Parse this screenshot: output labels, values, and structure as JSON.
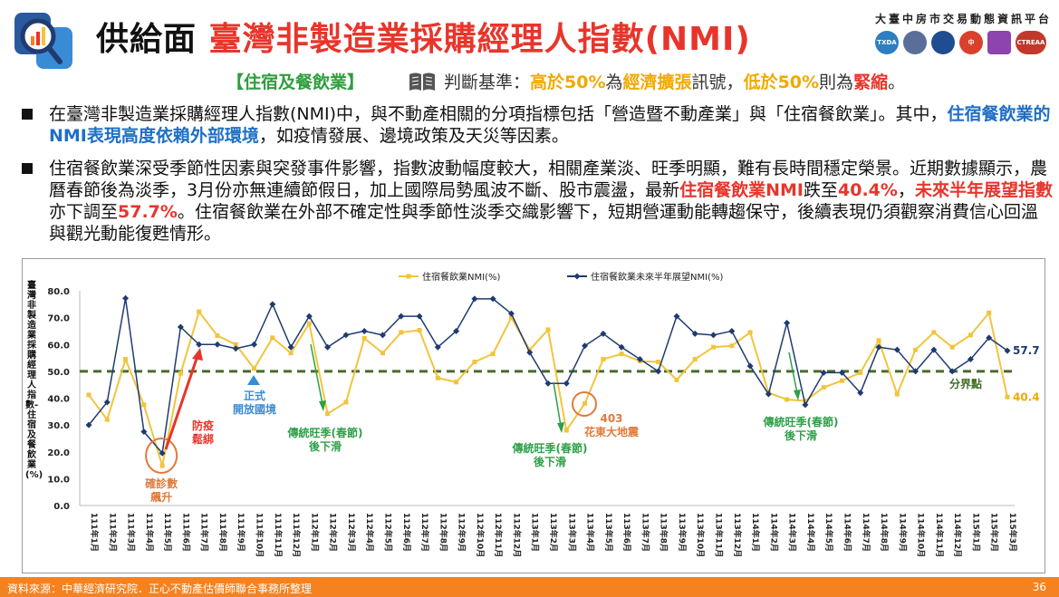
{
  "header": {
    "title_black": "供給面",
    "title_red": "臺灣非製造業採購經理人指數(NMI)",
    "org_name": "大臺中房市交易動態資訊平台",
    "partner_logos": [
      "TXDA",
      "logo",
      "logo",
      "中",
      "logo",
      "CTREAA"
    ]
  },
  "subtitle": {
    "sector": "【住宿及餐飲業】",
    "criteria_prefix": "判斷基準：",
    "high": "高於50%",
    "mid1": "為",
    "expansion": "經濟擴張",
    "mid2": "訊號，",
    "low": "低於50%",
    "mid3": "則為",
    "contraction": "緊縮",
    "end": "。"
  },
  "bullets": {
    "b1": {
      "p1": "在臺灣非製造業採購經理人指數(NMI)中，與不動產相關的分項指標包括「營造暨不動產業」與「住宿餐飲業」。其中，",
      "hl": "住宿餐飲業的NMI表現高度依賴外部環境",
      "p2": "，如疫情發展、邊境政策及天災等因素。"
    },
    "b2": {
      "p1": "住宿餐飲業深受季節性因素與突發事件影響，指數波動幅度較大，相關產業淡、旺季明顯，難有長時間穩定榮景。近期數據顯示，農曆春節後為淡季，3月份亦無連續節假日，加上國際局勢風波不斷、股市震盪，最新",
      "hl1": "住宿餐飲業NMI",
      "p2": "跌至",
      "hl2": "40.4%",
      "p3": "，",
      "hl3": "未來半年展望指數",
      "p4": "亦下調至",
      "hl4": "57.7%",
      "p5": "。住宿餐飲業在外部不確定性與季節性淡季交織影響下，短期營運動能轉趨保守，後續表現仍須觀察消費信心回溫與觀光動能復甦情形。"
    }
  },
  "chart_data": {
    "type": "line",
    "ylabel": "臺灣非製造業採購經理人指數-住宿及餐飲業(%)",
    "ylim": [
      0,
      80
    ],
    "yticks": [
      "0.0",
      "10.0",
      "20.0",
      "30.0",
      "40.0",
      "50.0",
      "60.0",
      "70.0",
      "80.0"
    ],
    "grid": false,
    "legend_position": "top-center",
    "categories": [
      "111年1月",
      "111年2月",
      "111年3月",
      "111年4月",
      "111年5月",
      "111年6月",
      "111年7月",
      "111年8月",
      "111年9月",
      "111年10月",
      "111年11月",
      "111年12月",
      "112年1月",
      "112年2月",
      "112年3月",
      "112年4月",
      "112年5月",
      "112年6月",
      "112年7月",
      "112年8月",
      "112年9月",
      "112年10月",
      "112年11月",
      "112年12月",
      "113年1月",
      "113年2月",
      "113年3月",
      "113年4月",
      "113年5月",
      "113年6月",
      "113年7月",
      "113年8月",
      "113年9月",
      "113年10月",
      "113年11月",
      "113年12月",
      "114年1月",
      "114年2月",
      "114年3月",
      "114年4月",
      "114年5月",
      "114年6月",
      "114年7月",
      "114年8月",
      "114年9月",
      "114年10月",
      "114年11月",
      "114年12月",
      "115年1月",
      "115年2月",
      "115年3月"
    ],
    "series": [
      {
        "name": "住宿餐飲業NMI(%)",
        "color": "#f2c43d",
        "values": [
          41.2,
          32.0,
          54.5,
          37.5,
          14.8,
          49.2,
          72.2,
          63.3,
          60.0,
          51.0,
          62.5,
          56.8,
          67.8,
          34.2,
          38.5,
          62.3,
          56.8,
          64.5,
          65.3,
          47.5,
          46.0,
          53.5,
          56.5,
          70.0,
          58.0,
          65.5,
          28.0,
          38.0,
          54.5,
          56.5,
          53.8,
          53.5,
          46.8,
          54.5,
          59.0,
          59.5,
          64.5,
          42.0,
          39.5,
          39.0,
          44.0,
          46.5,
          49.5,
          61.5,
          41.5,
          58.0,
          64.5,
          59.0,
          63.5,
          71.8,
          40.4
        ]
      },
      {
        "name": "住宿餐飲業未來半年展望NMI(%)",
        "color": "#1f3b70",
        "values": [
          30.0,
          38.5,
          77.2,
          27.5,
          19.5,
          66.5,
          60.0,
          60.0,
          58.5,
          60.0,
          75.0,
          59.0,
          70.5,
          59.0,
          63.5,
          65.0,
          63.5,
          70.5,
          70.5,
          59.0,
          65.0,
          77.0,
          77.0,
          71.5,
          57.0,
          45.5,
          45.5,
          59.5,
          64.0,
          59.0,
          54.5,
          50.0,
          70.5,
          64.0,
          63.5,
          65.0,
          52.0,
          41.5,
          68.0,
          37.5,
          49.5,
          49.5,
          42.0,
          59.0,
          58.0,
          50.0,
          58.0,
          50.0,
          54.5,
          62.5,
          57.7
        ]
      }
    ],
    "reference_line": {
      "value": 50,
      "label": "分界點"
    },
    "end_labels": [
      "57.7",
      "40.4"
    ],
    "annotations": [
      {
        "text": "確診數\n飆升"
      },
      {
        "text": "防疫\n鬆綁"
      },
      {
        "text": "正式\n開放國境"
      },
      {
        "text": "傳統旺季(春節)\n後下滑"
      },
      {
        "text": "傳統旺季(春節)\n後下滑"
      },
      {
        "text": "403\n花東大地震"
      },
      {
        "text": "傳統旺季(春節)\n後下滑"
      }
    ]
  },
  "footer": {
    "source": "資料來源：中華經濟研究院．正心不動產估價師聯合事務所整理",
    "page": "36"
  }
}
